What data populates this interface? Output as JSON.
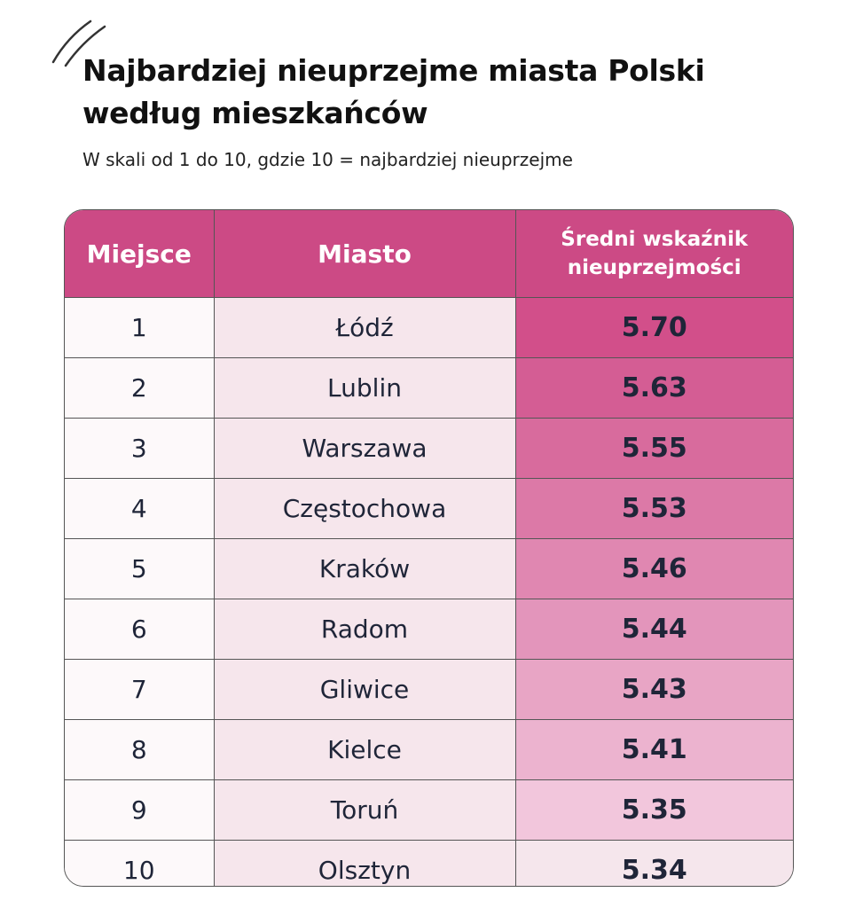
{
  "header": {
    "title_line1": "Najbardziej nieuprzejme miasta Polski",
    "title_line2": "według mieszkańców",
    "subtitle": "W skali od 1 do 10, gdzie 10 = najbardziej nieuprzejme"
  },
  "table": {
    "columns": [
      "Miejsce",
      "Miasto",
      "Średni wskaźnik nieuprzejmości"
    ],
    "rows": [
      [
        "1",
        "Łódź",
        "5.70"
      ],
      [
        "2",
        "Lublin",
        "5.63"
      ],
      [
        "3",
        "Warszawa",
        "5.55"
      ],
      [
        "4",
        "Częstochowa",
        "5.53"
      ],
      [
        "5",
        "Kraków",
        "5.46"
      ],
      [
        "6",
        "Radom",
        "5.44"
      ],
      [
        "7",
        "Gliwice",
        "5.43"
      ],
      [
        "8",
        "Kielce",
        "5.41"
      ],
      [
        "9",
        "Toruń",
        "5.35"
      ],
      [
        "10",
        "Olsztyn",
        "5.34"
      ]
    ]
  }
}
